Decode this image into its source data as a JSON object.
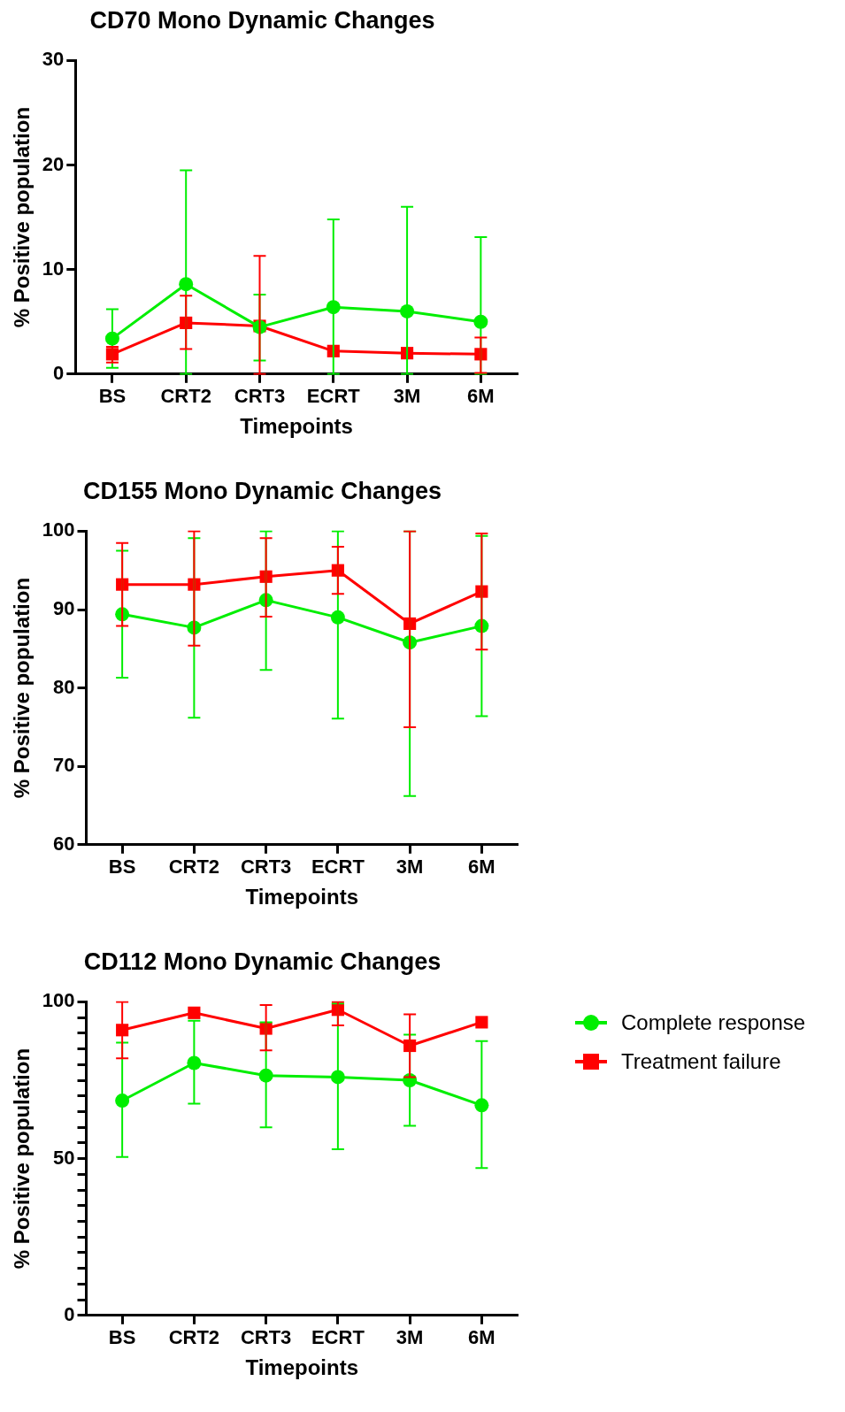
{
  "chart_data": [
    {
      "type": "line",
      "title": "CD70 Mono Dynamic Changes",
      "xlabel": "Timepoints",
      "ylabel": "% Positive population",
      "categories": [
        "BS",
        "CRT2",
        "CRT3",
        "ECRT",
        "3M",
        "6M"
      ],
      "ylim": [
        0,
        30
      ],
      "yticks": [
        0,
        10,
        20,
        30
      ],
      "grid": false,
      "legend": false,
      "line_style": "solid",
      "series": [
        {
          "color": "#00ee00",
          "marker": "circle",
          "values": [
            3.4,
            8.6,
            4.5,
            6.4,
            6.0,
            5.0
          ],
          "errors": [
            [
              0.6,
              6.2
            ],
            [
              0,
              19.5
            ],
            [
              1.3,
              7.6
            ],
            [
              0,
              14.8
            ],
            [
              0,
              16.0
            ],
            [
              0,
              13.1
            ]
          ]
        },
        {
          "color": "#ff0000",
          "marker": "square",
          "values": [
            1.9,
            4.9,
            4.6,
            2.2,
            2.0,
            1.9
          ],
          "errors": [
            [
              1.1,
              2.6
            ],
            [
              2.4,
              7.5
            ],
            [
              0,
              11.3
            ],
            null,
            null,
            [
              0.1,
              3.5
            ]
          ]
        }
      ]
    },
    {
      "type": "line",
      "title": "CD155 Mono Dynamic Changes",
      "xlabel": "Timepoints",
      "ylabel": "% Positive population",
      "categories": [
        "BS",
        "CRT2",
        "CRT3",
        "ECRT",
        "3M",
        "6M"
      ],
      "ylim": [
        60,
        100
      ],
      "yticks": [
        60,
        70,
        80,
        90,
        100
      ],
      "grid": false,
      "legend": false,
      "line_style": "solid",
      "series": [
        {
          "color": "#00ee00",
          "marker": "circle",
          "values": [
            89.4,
            87.7,
            91.2,
            89.0,
            85.8,
            87.9
          ],
          "errors": [
            [
              81.3,
              97.5
            ],
            [
              76.2,
              99.1
            ],
            [
              82.3,
              100
            ],
            [
              76.1,
              100
            ],
            [
              66.2,
              100
            ],
            [
              76.4,
              99.4
            ]
          ]
        },
        {
          "color": "#ff0000",
          "marker": "square",
          "values": [
            93.2,
            93.2,
            94.2,
            95.0,
            88.2,
            92.3
          ],
          "errors": [
            [
              87.9,
              98.5
            ],
            [
              85.4,
              100
            ],
            [
              89.1,
              99.1
            ],
            [
              92.0,
              98.0
            ],
            [
              75.0,
              100
            ],
            [
              84.9,
              99.7
            ]
          ]
        }
      ]
    },
    {
      "type": "line",
      "title": "CD112 Mono Dynamic Changes",
      "xlabel": "Timepoints",
      "ylabel": "% Positive population",
      "categories": [
        "BS",
        "CRT2",
        "CRT3",
        "ECRT",
        "3M",
        "6M"
      ],
      "ylim": [
        0,
        100
      ],
      "yticks": [
        0,
        {
          "value": 5,
          "label": null
        },
        {
          "value": 10,
          "label": null
        },
        {
          "value": 15,
          "label": null
        },
        {
          "value": 20,
          "label": null
        },
        {
          "value": 25,
          "label": null
        },
        {
          "value": 30,
          "label": null
        },
        {
          "value": 35,
          "label": null
        },
        {
          "value": 40,
          "label": null
        },
        {
          "value": 45,
          "label": null
        },
        50,
        {
          "value": 55,
          "label": null
        },
        {
          "value": 60,
          "label": null
        },
        {
          "value": 65,
          "label": null
        },
        {
          "value": 70,
          "label": null
        },
        {
          "value": 75,
          "label": null
        },
        {
          "value": 80,
          "label": null
        },
        {
          "value": 85,
          "label": null
        },
        {
          "value": 90,
          "label": null
        },
        {
          "value": 95,
          "label": null
        },
        100
      ],
      "grid": false,
      "legend": "right",
      "line_style": "solid",
      "series": [
        {
          "name": "Complete response",
          "color": "#00ee00",
          "marker": "circle",
          "values": [
            68.5,
            80.5,
            76.5,
            76,
            75,
            67
          ],
          "errors": [
            [
              50.5,
              87
            ],
            [
              67.5,
              94
            ],
            [
              60,
              93.5
            ],
            [
              53,
              99.5
            ],
            [
              60.5,
              89.5
            ],
            [
              47,
              87.5
            ]
          ]
        },
        {
          "name": "Treatment failure",
          "color": "#ff0000",
          "marker": "square",
          "values": [
            91,
            96.5,
            91.5,
            97.5,
            86,
            93.5
          ],
          "errors": [
            [
              82,
              100
            ],
            null,
            [
              84.5,
              99
            ],
            [
              92.5,
              100
            ],
            [
              76,
              96
            ],
            null
          ]
        }
      ]
    }
  ]
}
